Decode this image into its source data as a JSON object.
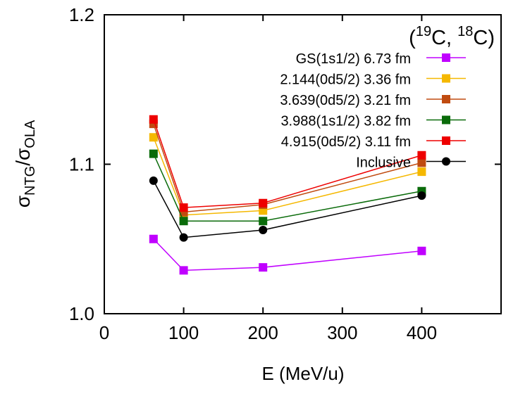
{
  "chart_data": {
    "type": "line",
    "title": "",
    "annotation": {
      "open": "(",
      "iso1_mass": "19",
      "iso1_sym": "C, ",
      "iso2_mass": "18",
      "iso2_sym": "C)"
    },
    "xlabel": "E (MeV/u)",
    "ylabel": {
      "main1": "σ",
      "sub1": "NTG",
      "sep": "/σ",
      "sub2": "OLA"
    },
    "xlim": [
      0,
      500
    ],
    "ylim": [
      1.0,
      1.2
    ],
    "xticks": [
      0,
      100,
      200,
      300,
      400
    ],
    "xtick_labels": [
      "0",
      "100",
      "200",
      "300",
      "400"
    ],
    "yticks": [
      1.0,
      1.1,
      1.2
    ],
    "ytick_labels": [
      "1.0",
      "1.1",
      "1.2"
    ],
    "grid": false,
    "legend_placement": "top-right",
    "x": [
      62,
      100,
      200,
      400
    ],
    "series": [
      {
        "name": "GS(1s1/2) 6.73 fm",
        "color": "#c000ff",
        "marker": "square",
        "values": [
          1.05,
          1.029,
          1.031,
          1.042
        ]
      },
      {
        "name": "2.144(0d5/2) 3.36 fm",
        "color": "#f5b800",
        "marker": "square",
        "values": [
          1.118,
          1.066,
          1.069,
          1.095
        ]
      },
      {
        "name": "3.639(0d5/2) 3.21 fm",
        "color": "#c04b10",
        "marker": "square",
        "values": [
          1.127,
          1.068,
          1.073,
          1.101
        ]
      },
      {
        "name": "3.988(1s1/2) 3.82 fm",
        "color": "#0a6b0a",
        "marker": "square",
        "values": [
          1.107,
          1.062,
          1.062,
          1.082
        ]
      },
      {
        "name": "4.915(0d5/2) 3.11 fm",
        "color": "#ee0000",
        "marker": "square",
        "values": [
          1.13,
          1.071,
          1.074,
          1.106
        ]
      },
      {
        "name": "Inclusive",
        "color": "#000000",
        "marker": "circle",
        "values": [
          1.089,
          1.051,
          1.056,
          1.079
        ]
      }
    ]
  }
}
